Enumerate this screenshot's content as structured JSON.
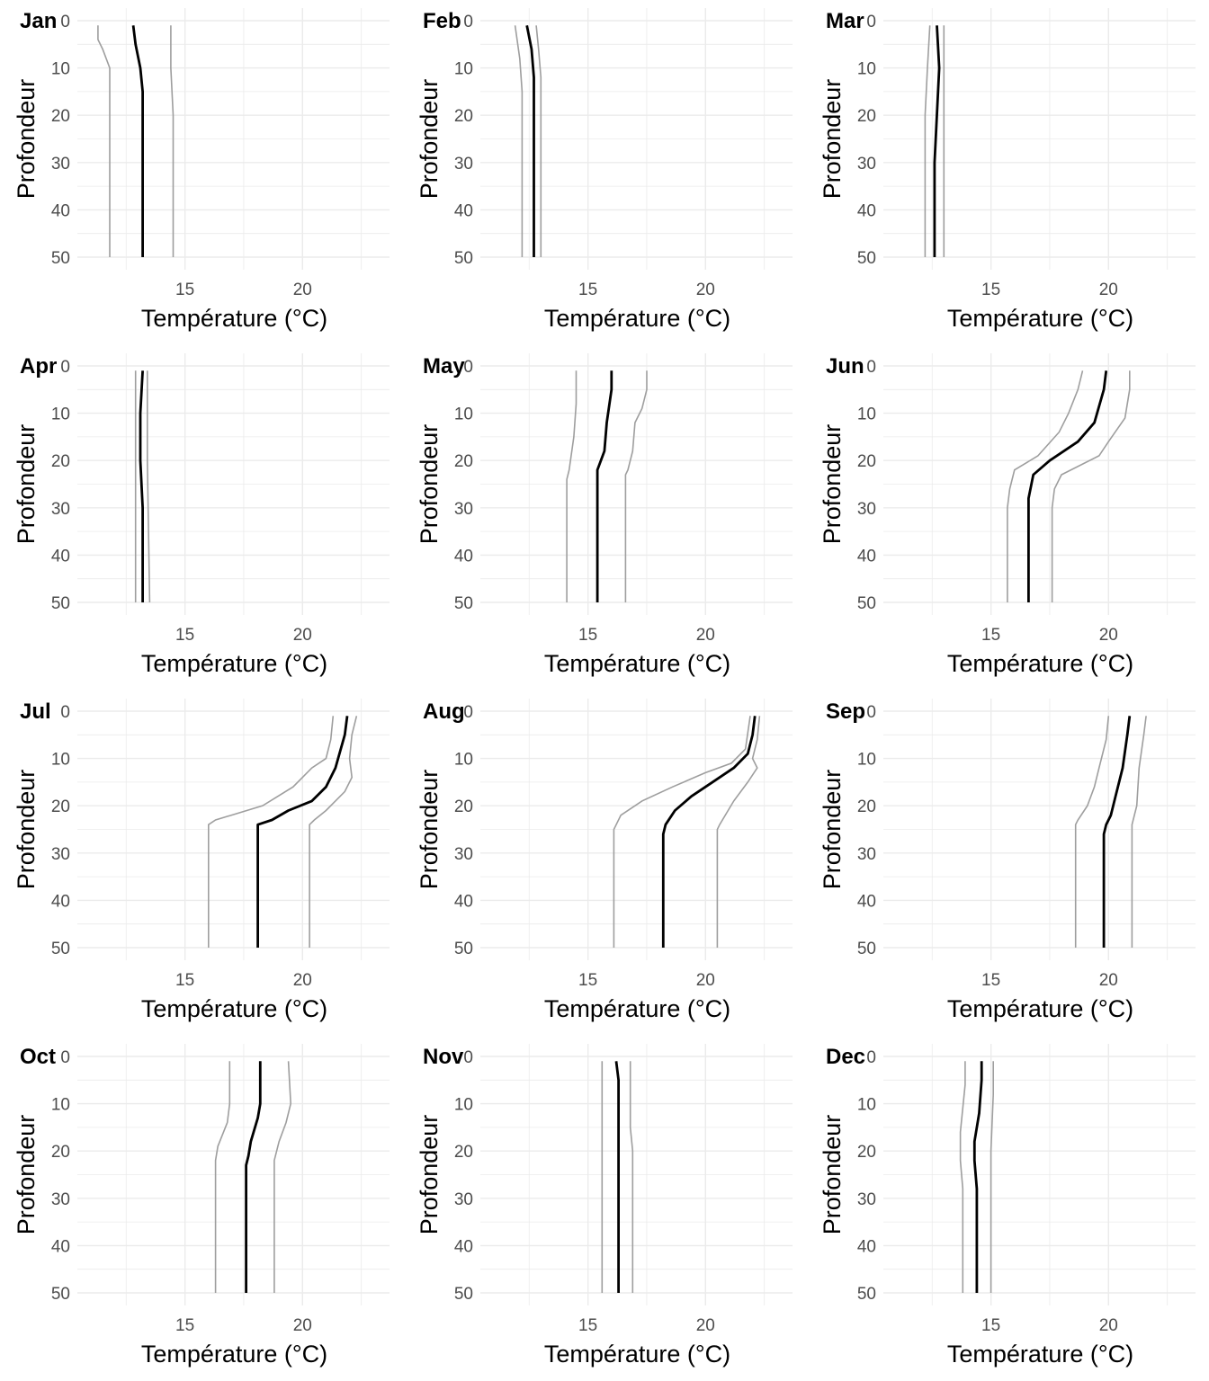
{
  "chart_data": {
    "type": "line",
    "layout": "3 x 4 facet grid",
    "xlabel": "Température (°C)",
    "ylabel": "Profondeur",
    "xlim": [
      10.5,
      23.7
    ],
    "x_ticks": [
      15,
      20
    ],
    "ylim": [
      50,
      0
    ],
    "y_ticks": [
      0,
      10,
      20,
      30,
      40,
      50
    ],
    "y_reversed": true,
    "grid": true,
    "colors": {
      "mean": "#000000",
      "bounds": "#9e9e9e",
      "grid": "#ebebeb"
    },
    "panels": [
      {
        "month": "Jan",
        "lower": [
          [
            11.3,
            1
          ],
          [
            11.3,
            4
          ],
          [
            11.5,
            6
          ],
          [
            11.8,
            10
          ],
          [
            11.8,
            20
          ],
          [
            11.8,
            30
          ],
          [
            11.8,
            40
          ],
          [
            11.8,
            50
          ]
        ],
        "mean": [
          [
            12.8,
            1
          ],
          [
            12.9,
            5
          ],
          [
            13.1,
            10
          ],
          [
            13.2,
            15
          ],
          [
            13.2,
            30
          ],
          [
            13.2,
            50
          ]
        ],
        "upper": [
          [
            14.4,
            1
          ],
          [
            14.4,
            10
          ],
          [
            14.5,
            20
          ],
          [
            14.5,
            50
          ]
        ]
      },
      {
        "month": "Feb",
        "lower": [
          [
            11.9,
            1
          ],
          [
            12.1,
            8
          ],
          [
            12.2,
            15
          ],
          [
            12.2,
            50
          ]
        ],
        "mean": [
          [
            12.4,
            1
          ],
          [
            12.6,
            6
          ],
          [
            12.7,
            12
          ],
          [
            12.7,
            50
          ]
        ],
        "upper": [
          [
            12.8,
            1
          ],
          [
            12.9,
            6
          ],
          [
            13.0,
            12
          ],
          [
            13.0,
            50
          ]
        ]
      },
      {
        "month": "Mar",
        "lower": [
          [
            12.4,
            1
          ],
          [
            12.3,
            10
          ],
          [
            12.2,
            20
          ],
          [
            12.2,
            50
          ]
        ],
        "mean": [
          [
            12.7,
            1
          ],
          [
            12.8,
            10
          ],
          [
            12.7,
            20
          ],
          [
            12.6,
            30
          ],
          [
            12.6,
            50
          ]
        ],
        "upper": [
          [
            13.0,
            1
          ],
          [
            13.0,
            10
          ],
          [
            13.0,
            20
          ],
          [
            13.0,
            50
          ]
        ]
      },
      {
        "month": "Apr",
        "lower": [
          [
            12.9,
            1
          ],
          [
            12.9,
            20
          ],
          [
            12.9,
            50
          ]
        ],
        "mean": [
          [
            13.2,
            1
          ],
          [
            13.1,
            10
          ],
          [
            13.1,
            20
          ],
          [
            13.2,
            30
          ],
          [
            13.2,
            50
          ]
        ],
        "upper": [
          [
            13.4,
            1
          ],
          [
            13.4,
            20
          ],
          [
            13.5,
            50
          ]
        ]
      },
      {
        "month": "May",
        "lower": [
          [
            14.5,
            1
          ],
          [
            14.5,
            8
          ],
          [
            14.4,
            15
          ],
          [
            14.2,
            22
          ],
          [
            14.1,
            24
          ],
          [
            14.1,
            50
          ]
        ],
        "mean": [
          [
            16.0,
            1
          ],
          [
            16.0,
            5
          ],
          [
            15.8,
            12
          ],
          [
            15.7,
            18
          ],
          [
            15.4,
            22
          ],
          [
            15.4,
            50
          ]
        ],
        "upper": [
          [
            17.5,
            1
          ],
          [
            17.5,
            5
          ],
          [
            17.3,
            9
          ],
          [
            17.0,
            12
          ],
          [
            16.9,
            18
          ],
          [
            16.7,
            22
          ],
          [
            16.6,
            23
          ],
          [
            16.6,
            50
          ]
        ]
      },
      {
        "month": "Jun",
        "lower": [
          [
            18.9,
            1
          ],
          [
            18.7,
            5
          ],
          [
            18.3,
            10
          ],
          [
            17.9,
            14
          ],
          [
            17.0,
            19
          ],
          [
            16.0,
            22
          ],
          [
            15.8,
            26
          ],
          [
            15.7,
            30
          ],
          [
            15.7,
            50
          ]
        ],
        "mean": [
          [
            19.9,
            1
          ],
          [
            19.8,
            5
          ],
          [
            19.4,
            12
          ],
          [
            18.7,
            16
          ],
          [
            17.5,
            20
          ],
          [
            16.8,
            23
          ],
          [
            16.6,
            28
          ],
          [
            16.6,
            50
          ]
        ],
        "upper": [
          [
            20.9,
            1
          ],
          [
            20.9,
            5
          ],
          [
            20.7,
            11
          ],
          [
            20.0,
            16
          ],
          [
            19.6,
            19
          ],
          [
            18.0,
            23
          ],
          [
            17.7,
            26
          ],
          [
            17.6,
            30
          ],
          [
            17.6,
            50
          ]
        ]
      },
      {
        "month": "Jul",
        "lower": [
          [
            21.3,
            1
          ],
          [
            21.2,
            6
          ],
          [
            21.0,
            10
          ],
          [
            20.4,
            12
          ],
          [
            19.6,
            16
          ],
          [
            18.3,
            20
          ],
          [
            16.3,
            23
          ],
          [
            16.0,
            24
          ],
          [
            16.0,
            50
          ]
        ],
        "mean": [
          [
            21.9,
            1
          ],
          [
            21.8,
            5
          ],
          [
            21.4,
            12
          ],
          [
            21.0,
            16
          ],
          [
            20.4,
            19
          ],
          [
            19.4,
            21
          ],
          [
            18.7,
            23
          ],
          [
            18.1,
            24
          ],
          [
            18.1,
            50
          ]
        ],
        "upper": [
          [
            22.3,
            1
          ],
          [
            22.1,
            5
          ],
          [
            22.0,
            10
          ],
          [
            22.1,
            14
          ],
          [
            21.8,
            17
          ],
          [
            21.0,
            21
          ],
          [
            20.5,
            23
          ],
          [
            20.3,
            24
          ],
          [
            20.3,
            50
          ]
        ]
      },
      {
        "month": "Aug",
        "lower": [
          [
            21.9,
            1
          ],
          [
            21.7,
            8
          ],
          [
            21.1,
            11
          ],
          [
            20.0,
            13
          ],
          [
            18.6,
            16
          ],
          [
            17.3,
            19
          ],
          [
            16.4,
            22
          ],
          [
            16.1,
            25
          ],
          [
            16.1,
            50
          ]
        ],
        "mean": [
          [
            22.1,
            1
          ],
          [
            22.0,
            5
          ],
          [
            21.8,
            9
          ],
          [
            21.2,
            12
          ],
          [
            20.3,
            15
          ],
          [
            19.4,
            18
          ],
          [
            18.7,
            21
          ],
          [
            18.3,
            24
          ],
          [
            18.2,
            26
          ],
          [
            18.2,
            50
          ]
        ],
        "upper": [
          [
            22.3,
            1
          ],
          [
            22.2,
            6
          ],
          [
            22.0,
            10
          ],
          [
            22.2,
            12
          ],
          [
            21.8,
            15
          ],
          [
            21.2,
            19
          ],
          [
            20.6,
            24
          ],
          [
            20.5,
            25
          ],
          [
            20.5,
            50
          ]
        ]
      },
      {
        "month": "Sep",
        "lower": [
          [
            20.0,
            1
          ],
          [
            19.9,
            6
          ],
          [
            19.6,
            12
          ],
          [
            19.4,
            16
          ],
          [
            19.1,
            20
          ],
          [
            18.7,
            23
          ],
          [
            18.6,
            24
          ],
          [
            18.6,
            50
          ]
        ],
        "mean": [
          [
            20.9,
            1
          ],
          [
            20.8,
            5
          ],
          [
            20.6,
            12
          ],
          [
            20.3,
            18
          ],
          [
            20.1,
            22
          ],
          [
            19.9,
            24
          ],
          [
            19.8,
            26
          ],
          [
            19.8,
            50
          ]
        ],
        "upper": [
          [
            21.6,
            1
          ],
          [
            21.5,
            5
          ],
          [
            21.3,
            12
          ],
          [
            21.2,
            20
          ],
          [
            21.0,
            24
          ],
          [
            21.0,
            28
          ],
          [
            21.0,
            50
          ]
        ]
      },
      {
        "month": "Oct",
        "lower": [
          [
            16.9,
            1
          ],
          [
            16.9,
            10
          ],
          [
            16.8,
            14
          ],
          [
            16.4,
            19
          ],
          [
            16.3,
            22
          ],
          [
            16.3,
            50
          ]
        ],
        "mean": [
          [
            18.2,
            1
          ],
          [
            18.2,
            10
          ],
          [
            18.1,
            13
          ],
          [
            17.8,
            18
          ],
          [
            17.7,
            21
          ],
          [
            17.6,
            23
          ],
          [
            17.6,
            50
          ]
        ],
        "upper": [
          [
            19.4,
            1
          ],
          [
            19.5,
            10
          ],
          [
            19.3,
            14
          ],
          [
            19.0,
            18
          ],
          [
            18.8,
            22
          ],
          [
            18.8,
            50
          ]
        ]
      },
      {
        "month": "Nov",
        "lower": [
          [
            15.6,
            1
          ],
          [
            15.6,
            50
          ]
        ],
        "mean": [
          [
            16.2,
            1
          ],
          [
            16.3,
            5
          ],
          [
            16.3,
            50
          ]
        ],
        "upper": [
          [
            16.8,
            1
          ],
          [
            16.8,
            15
          ],
          [
            16.9,
            20
          ],
          [
            16.9,
            50
          ]
        ]
      },
      {
        "month": "Dec",
        "lower": [
          [
            13.9,
            1
          ],
          [
            13.9,
            6
          ],
          [
            13.7,
            16
          ],
          [
            13.7,
            22
          ],
          [
            13.8,
            28
          ],
          [
            13.8,
            50
          ]
        ],
        "mean": [
          [
            14.6,
            1
          ],
          [
            14.6,
            5
          ],
          [
            14.5,
            12
          ],
          [
            14.3,
            18
          ],
          [
            14.3,
            22
          ],
          [
            14.4,
            28
          ],
          [
            14.4,
            50
          ]
        ],
        "upper": [
          [
            15.1,
            1
          ],
          [
            15.1,
            8
          ],
          [
            15.0,
            20
          ],
          [
            15.0,
            50
          ]
        ]
      }
    ]
  }
}
